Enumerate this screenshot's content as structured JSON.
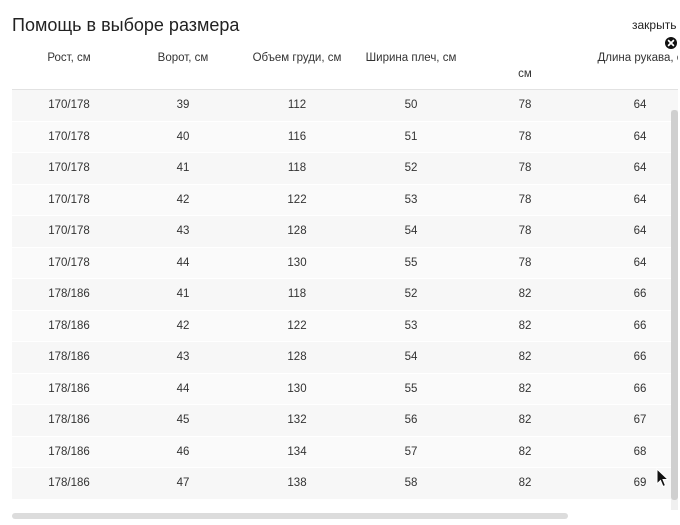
{
  "dialog": {
    "title": "Помощь в выборе размера",
    "close_label": "закрыть"
  },
  "table": {
    "headers": [
      "Рост, см",
      "Ворот, см",
      "Объем груди, см",
      "Ширина плеч, см",
      "см",
      "Длина рукава, с"
    ],
    "rows": [
      [
        "170/178",
        "39",
        "112",
        "50",
        "78",
        "64"
      ],
      [
        "170/178",
        "40",
        "116",
        "51",
        "78",
        "64"
      ],
      [
        "170/178",
        "41",
        "118",
        "52",
        "78",
        "64"
      ],
      [
        "170/178",
        "42",
        "122",
        "53",
        "78",
        "64"
      ],
      [
        "170/178",
        "43",
        "128",
        "54",
        "78",
        "64"
      ],
      [
        "170/178",
        "44",
        "130",
        "55",
        "78",
        "64"
      ],
      [
        "178/186",
        "41",
        "118",
        "52",
        "82",
        "66"
      ],
      [
        "178/186",
        "42",
        "122",
        "53",
        "82",
        "66"
      ],
      [
        "178/186",
        "43",
        "128",
        "54",
        "82",
        "66"
      ],
      [
        "178/186",
        "44",
        "130",
        "55",
        "82",
        "66"
      ],
      [
        "178/186",
        "45",
        "132",
        "56",
        "82",
        "67"
      ],
      [
        "178/186",
        "46",
        "134",
        "57",
        "82",
        "68"
      ],
      [
        "178/186",
        "47",
        "138",
        "58",
        "82",
        "69"
      ]
    ]
  },
  "icons": {
    "close": "close-circle-icon",
    "cursor": "mouse-pointer-icon"
  }
}
